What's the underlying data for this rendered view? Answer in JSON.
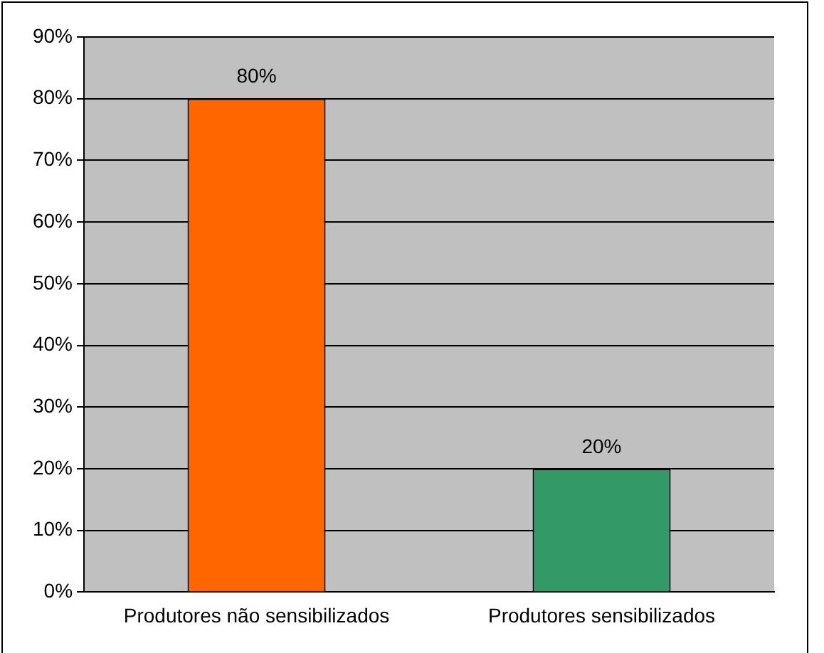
{
  "chart_data": {
    "type": "bar",
    "categories": [
      "Produtores não sensibilizados",
      "Produtores sensibilizados"
    ],
    "values": [
      80,
      20
    ],
    "colors": [
      "#ff6600",
      "#339966"
    ],
    "value_labels": [
      "80%",
      "20%"
    ],
    "ylim": [
      0,
      90
    ],
    "yticks": [
      {
        "value": 0,
        "label": "0%"
      },
      {
        "value": 10,
        "label": "10%"
      },
      {
        "value": 20,
        "label": "20%"
      },
      {
        "value": 30,
        "label": "30%"
      },
      {
        "value": 40,
        "label": "40%"
      },
      {
        "value": 50,
        "label": "50%"
      },
      {
        "value": 60,
        "label": "60%"
      },
      {
        "value": 70,
        "label": "70%"
      },
      {
        "value": 80,
        "label": "80%"
      },
      {
        "value": 90,
        "label": "90%"
      }
    ],
    "grid": "y",
    "legend": false
  }
}
